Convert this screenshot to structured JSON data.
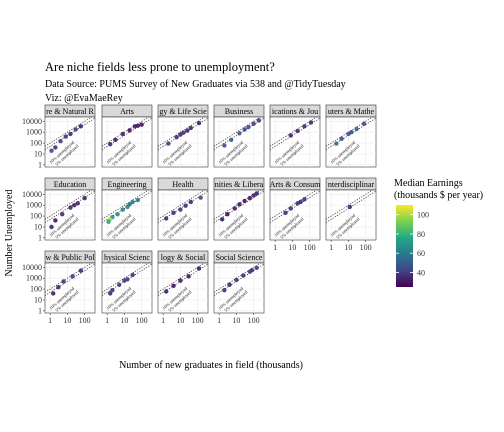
{
  "title": "Are niche fields less prone to unemployment?",
  "subtitle_lines": [
    "Data Source: PUMS Survey of New Graduates via 538 and @TidyTuesday",
    "Viz: @EvaMaeRey"
  ],
  "chart_data": {
    "type": "scatter",
    "xlabel": "Number of new graduates in field (thousands)",
    "ylabel": "Number Unemployed",
    "x_scale": "log10",
    "y_scale": "log10",
    "x_ticks": [
      "1",
      "10",
      "100"
    ],
    "y_ticks": [
      "1",
      "10",
      "100",
      "1000",
      "10000"
    ],
    "reference_lines": [
      {
        "label": "10% unemployed",
        "fraction": 0.1
      },
      {
        "label": "5% unemployed",
        "fraction": 0.05
      }
    ],
    "legend": {
      "title_lines": [
        "Median Earnings",
        "(thousands $ per year)"
      ],
      "ticks": [
        "100",
        "80",
        "60",
        "40"
      ],
      "tick_values": [
        100,
        80,
        60,
        40
      ],
      "range": [
        25,
        110
      ],
      "colors": [
        "#440154",
        "#414487",
        "#2a788e",
        "#22a884",
        "#7ad151",
        "#fde725"
      ]
    },
    "panels": [
      {
        "name": "Agriculture & Natural Resources",
        "strip": "re & Natural R",
        "points": [
          {
            "x": 15,
            "y": 700,
            "earn": 35
          },
          {
            "x": 4,
            "y": 150,
            "earn": 40
          },
          {
            "x": 2,
            "y": 40,
            "earn": 36
          },
          {
            "x": 30,
            "y": 1800,
            "earn": 40
          },
          {
            "x": 8,
            "y": 400,
            "earn": 38
          },
          {
            "x": 1.2,
            "y": 20,
            "earn": 45
          },
          {
            "x": 60,
            "y": 3500,
            "earn": 33
          }
        ]
      },
      {
        "name": "Arts",
        "strip": "Arts",
        "points": [
          {
            "x": 100,
            "y": 5000,
            "earn": 30
          },
          {
            "x": 40,
            "y": 3500,
            "earn": 31
          },
          {
            "x": 20,
            "y": 1500,
            "earn": 30
          },
          {
            "x": 8,
            "y": 700,
            "earn": 33
          },
          {
            "x": 3,
            "y": 200,
            "earn": 32
          },
          {
            "x": 60,
            "y": 4000,
            "earn": 30
          },
          {
            "x": 1.5,
            "y": 80,
            "earn": 35
          }
        ]
      },
      {
        "name": "Biology & Life Science",
        "strip": "gy & Life Scie",
        "points": [
          {
            "x": 120,
            "y": 7000,
            "earn": 33
          },
          {
            "x": 40,
            "y": 2500,
            "earn": 35
          },
          {
            "x": 15,
            "y": 900,
            "earn": 38
          },
          {
            "x": 6,
            "y": 350,
            "earn": 36
          },
          {
            "x": 2,
            "y": 90,
            "earn": 40
          },
          {
            "x": 25,
            "y": 1400,
            "earn": 34
          },
          {
            "x": 10,
            "y": 600,
            "earn": 37
          }
        ]
      },
      {
        "name": "Business",
        "strip": "Business",
        "points": [
          {
            "x": 200,
            "y": 12000,
            "earn": 40
          },
          {
            "x": 100,
            "y": 6000,
            "earn": 42
          },
          {
            "x": 50,
            "y": 3000,
            "earn": 45
          },
          {
            "x": 15,
            "y": 800,
            "earn": 47
          },
          {
            "x": 5,
            "y": 200,
            "earn": 50
          },
          {
            "x": 2,
            "y": 60,
            "earn": 46
          },
          {
            "x": 30,
            "y": 1800,
            "earn": 42
          }
        ]
      },
      {
        "name": "Communications & Journalism",
        "strip": "ications & Jou",
        "points": [
          {
            "x": 120,
            "y": 8000,
            "earn": 34
          },
          {
            "x": 50,
            "y": 3500,
            "earn": 35
          },
          {
            "x": 20,
            "y": 1300,
            "earn": 35
          },
          {
            "x": 8,
            "y": 500,
            "earn": 33
          }
        ]
      },
      {
        "name": "Computers & Mathematics",
        "strip": "uters & Mathe",
        "points": [
          {
            "x": 80,
            "y": 6000,
            "earn": 45
          },
          {
            "x": 30,
            "y": 2000,
            "earn": 50
          },
          {
            "x": 10,
            "y": 700,
            "earn": 48
          },
          {
            "x": 4,
            "y": 250,
            "earn": 47
          },
          {
            "x": 2,
            "y": 90,
            "earn": 55
          },
          {
            "x": 15,
            "y": 1000,
            "earn": 42
          }
        ]
      },
      {
        "name": "Education",
        "strip": "Education",
        "points": [
          {
            "x": 100,
            "y": 4500,
            "earn": 32
          },
          {
            "x": 40,
            "y": 1500,
            "earn": 33
          },
          {
            "x": 15,
            "y": 600,
            "earn": 34
          },
          {
            "x": 5,
            "y": 150,
            "earn": 35
          },
          {
            "x": 2,
            "y": 40,
            "earn": 30
          },
          {
            "x": 1.2,
            "y": 10,
            "earn": 33
          },
          {
            "x": 25,
            "y": 1000,
            "earn": 33
          }
        ]
      },
      {
        "name": "Engineering",
        "strip": "Engineering",
        "points": [
          {
            "x": 60,
            "y": 3000,
            "earn": 60
          },
          {
            "x": 30,
            "y": 2000,
            "earn": 60
          },
          {
            "x": 15,
            "y": 700,
            "earn": 65
          },
          {
            "x": 8,
            "y": 400,
            "earn": 62
          },
          {
            "x": 4,
            "y": 150,
            "earn": 65
          },
          {
            "x": 2,
            "y": 80,
            "earn": 70
          },
          {
            "x": 1.5,
            "y": 50,
            "earn": 100
          },
          {
            "x": 1.2,
            "y": 30,
            "earn": 75
          },
          {
            "x": 20,
            "y": 1200,
            "earn": 57
          }
        ]
      },
      {
        "name": "Health",
        "strip": "Health",
        "points": [
          {
            "x": 150,
            "y": 5000,
            "earn": 45
          },
          {
            "x": 40,
            "y": 2000,
            "earn": 35
          },
          {
            "x": 10,
            "y": 400,
            "earn": 38
          },
          {
            "x": 4,
            "y": 200,
            "earn": 36
          },
          {
            "x": 1.5,
            "y": 60,
            "earn": 35
          },
          {
            "x": 20,
            "y": 900,
            "earn": 36
          }
        ]
      },
      {
        "name": "Humanities & Liberal Arts",
        "strip": "nities & Libera",
        "points": [
          {
            "x": 150,
            "y": 12000,
            "earn": 32
          },
          {
            "x": 60,
            "y": 4500,
            "earn": 31
          },
          {
            "x": 30,
            "y": 2500,
            "earn": 30
          },
          {
            "x": 15,
            "y": 1200,
            "earn": 30
          },
          {
            "x": 8,
            "y": 500,
            "earn": 32
          },
          {
            "x": 3,
            "y": 150,
            "earn": 29
          },
          {
            "x": 1.5,
            "y": 50,
            "earn": 31
          },
          {
            "x": 100,
            "y": 8000,
            "earn": 33
          }
        ]
      },
      {
        "name": "Industrial Arts & Consumer Services",
        "strip": "Arts & Consum",
        "points": [
          {
            "x": 50,
            "y": 3500,
            "earn": 35
          },
          {
            "x": 20,
            "y": 1500,
            "earn": 37
          },
          {
            "x": 8,
            "y": 500,
            "earn": 38
          },
          {
            "x": 4,
            "y": 200,
            "earn": 36
          },
          {
            "x": 30,
            "y": 2000,
            "earn": 35
          }
        ]
      },
      {
        "name": "Interdisciplinary",
        "strip": "nterdisciplinar",
        "points": [
          {
            "x": 12,
            "y": 700,
            "earn": 35
          }
        ]
      },
      {
        "name": "Law & Public Policy",
        "strip": "w & Public Pol",
        "points": [
          {
            "x": 60,
            "y": 5000,
            "earn": 36
          },
          {
            "x": 20,
            "y": 1500,
            "earn": 40
          },
          {
            "x": 6,
            "y": 500,
            "earn": 36
          },
          {
            "x": 3,
            "y": 150,
            "earn": 33
          },
          {
            "x": 1.5,
            "y": 40,
            "earn": 32
          }
        ]
      },
      {
        "name": "Physical Sciences",
        "strip": "hysical Scienc",
        "points": [
          {
            "x": 30,
            "y": 2000,
            "earn": 38
          },
          {
            "x": 10,
            "y": 600,
            "earn": 40
          },
          {
            "x": 5,
            "y": 250,
            "earn": 40
          },
          {
            "x": 2,
            "y": 80,
            "earn": 38
          },
          {
            "x": 1.5,
            "y": 40,
            "earn": 35
          },
          {
            "x": 15,
            "y": 800,
            "earn": 40
          }
        ]
      },
      {
        "name": "Psychology & Social Work",
        "strip": "logy & Social",
        "points": [
          {
            "x": 120,
            "y": 8000,
            "earn": 31
          },
          {
            "x": 30,
            "y": 1500,
            "earn": 30
          },
          {
            "x": 10,
            "y": 600,
            "earn": 32
          },
          {
            "x": 4,
            "y": 200,
            "earn": 30
          },
          {
            "x": 1.5,
            "y": 60,
            "earn": 32
          }
        ]
      },
      {
        "name": "Social Science",
        "strip": "Social Science",
        "points": [
          {
            "x": 150,
            "y": 9000,
            "earn": 40
          },
          {
            "x": 60,
            "y": 4000,
            "earn": 38
          },
          {
            "x": 25,
            "y": 1800,
            "earn": 36
          },
          {
            "x": 10,
            "y": 700,
            "earn": 38
          },
          {
            "x": 4,
            "y": 250,
            "earn": 35
          },
          {
            "x": 2,
            "y": 80,
            "earn": 36
          },
          {
            "x": 80,
            "y": 5500,
            "earn": 37
          }
        ]
      }
    ]
  }
}
